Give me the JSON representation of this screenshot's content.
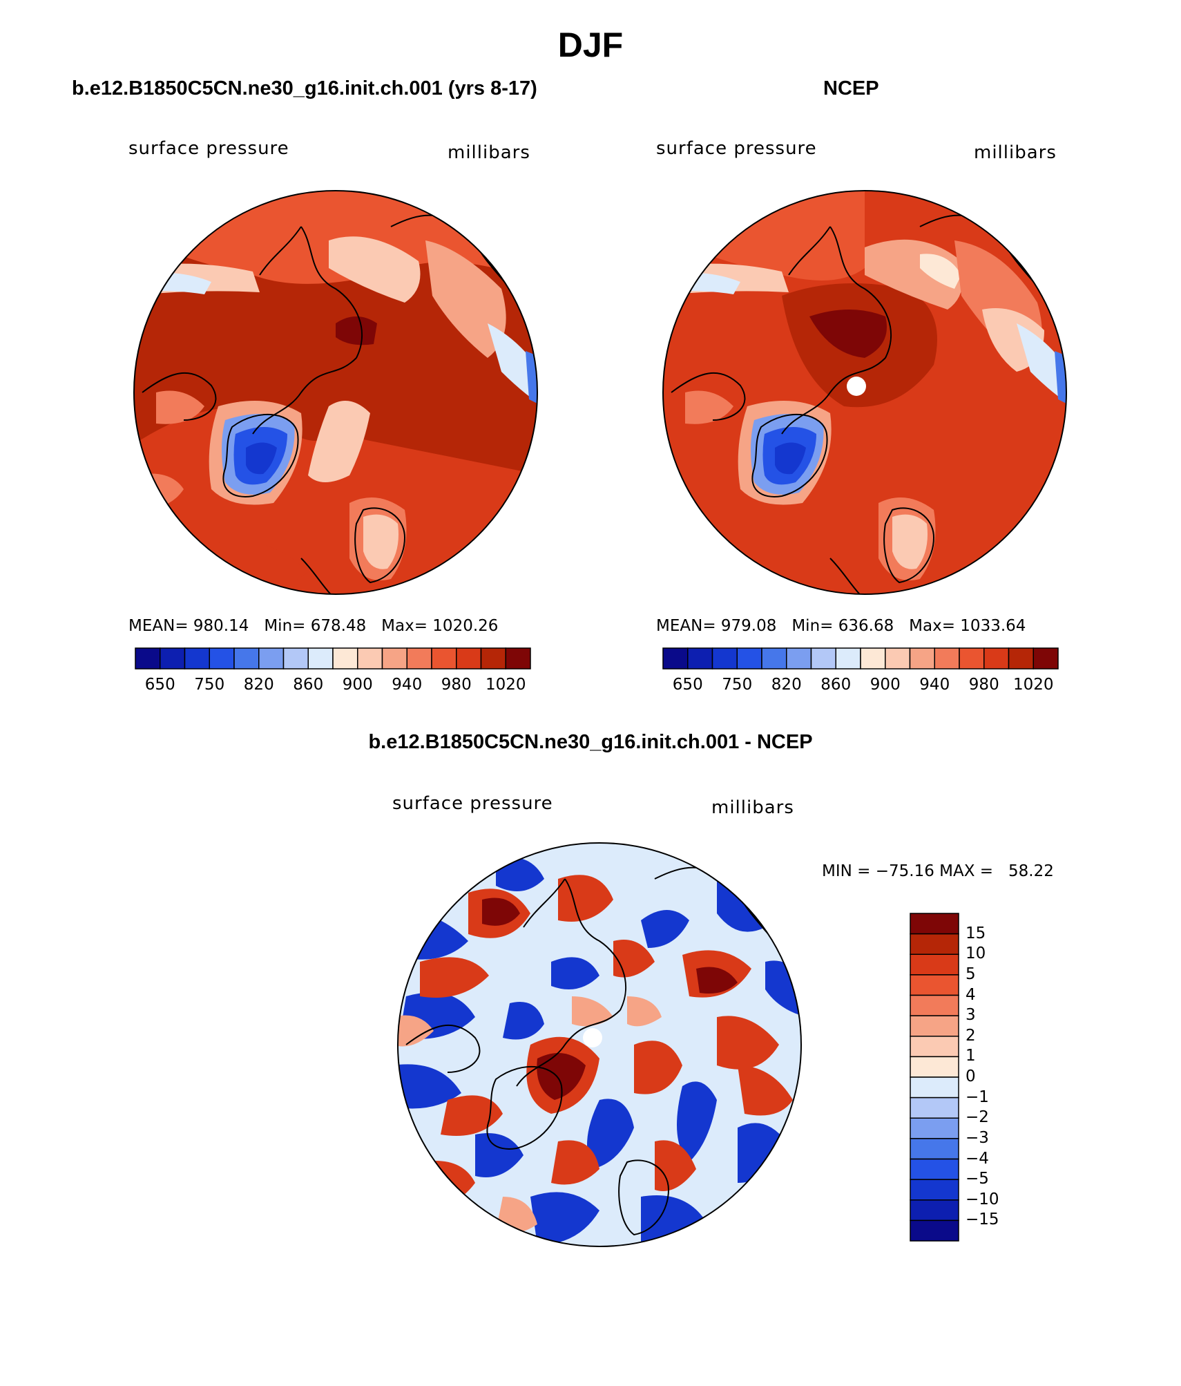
{
  "figure": {
    "title": "DJF"
  },
  "panels": [
    {
      "id": "model",
      "header": "b.e12.B1850C5CN.ne30_g16.init.ch.001 (yrs 8-17)",
      "left_label": "surface pressure",
      "right_label": "millibars",
      "stats": {
        "mean_label": "MEAN=",
        "mean": "980.14",
        "min_label": "Min=",
        "min": "678.48",
        "max_label": "Max=",
        "max": "1020.26"
      },
      "has_pole_hole": false
    },
    {
      "id": "obs",
      "header": "NCEP",
      "left_label": "surface pressure",
      "right_label": "millibars",
      "stats": {
        "mean_label": "MEAN=",
        "mean": "979.08",
        "min_label": "Min=",
        "min": "636.68",
        "max_label": "Max=",
        "max": "1033.64"
      },
      "has_pole_hole": true
    }
  ],
  "difference": {
    "header": "b.e12.B1850C5CN.ne30_g16.init.ch.001 - NCEP",
    "left_label": "surface pressure",
    "right_label": "millibars",
    "minmax": "MIN = −75.16 MAX =   58.22"
  },
  "colorbar_abs": {
    "colors": [
      "#0a0a8a",
      "#0d1fb0",
      "#1437cf",
      "#2452e6",
      "#4677ea",
      "#7b9ef0",
      "#b3c8f7",
      "#dcebfb",
      "#fde8d6",
      "#fbcab3",
      "#f6a486",
      "#f27b5a",
      "#ea5530",
      "#d93a18",
      "#b52607",
      "#7e0606"
    ],
    "tick_labels": [
      "650",
      "750",
      "820",
      "860",
      "900",
      "940",
      "980",
      "1020"
    ]
  },
  "colorbar_diff": {
    "colors": [
      "#7e0606",
      "#b52607",
      "#d93a18",
      "#ea5530",
      "#f27b5a",
      "#f6a486",
      "#fbcab3",
      "#fde8d6",
      "#dcebfb",
      "#b3c8f7",
      "#7b9ef0",
      "#4677ea",
      "#2452e6",
      "#1437cf",
      "#0d1fb0",
      "#0a0a8a"
    ],
    "tick_labels": [
      "15",
      "10",
      "5",
      "4",
      "3",
      "2",
      "1",
      "0",
      "−1",
      "−2",
      "−3",
      "−4",
      "−5",
      "−10",
      "−15"
    ]
  }
}
